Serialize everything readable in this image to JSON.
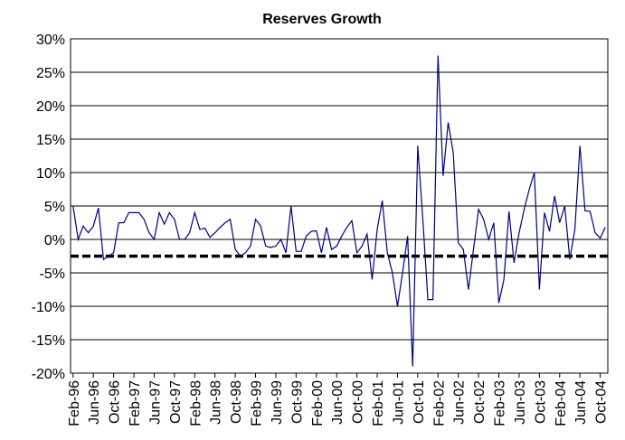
{
  "chart_data": {
    "type": "line",
    "title": "Reserves Growth",
    "categories": [
      "Feb-96",
      null,
      null,
      null,
      "Jun-96",
      null,
      null,
      null,
      "Oct-96",
      null,
      null,
      null,
      "Feb-97",
      null,
      null,
      null,
      "Jun-97",
      null,
      null,
      null,
      "Oct-97",
      null,
      null,
      null,
      "Feb-98",
      null,
      null,
      null,
      "Jun-98",
      null,
      null,
      null,
      "Oct-98",
      null,
      null,
      null,
      "Feb-99",
      null,
      null,
      null,
      "Jun-99",
      null,
      null,
      null,
      "Oct-99",
      null,
      null,
      null,
      "Feb-00",
      null,
      null,
      null,
      "Jun-00",
      null,
      null,
      null,
      "Oct-00",
      null,
      null,
      null,
      "Feb-01",
      null,
      null,
      null,
      "Jun-01",
      null,
      null,
      null,
      "Oct-01",
      null,
      null,
      null,
      "Feb-02",
      null,
      null,
      null,
      "Jun-02",
      null,
      null,
      null,
      "Oct-02",
      null,
      null,
      null,
      "Feb-03",
      null,
      null,
      null,
      "Jun-03",
      null,
      null,
      null,
      "Oct-03",
      null,
      null,
      null,
      "Feb-04",
      null,
      null,
      null,
      "Jun-04",
      null,
      null,
      null,
      "Oct-04",
      null
    ],
    "series": [
      {
        "color": "#000080",
        "values": [
          5,
          0,
          2,
          1,
          2,
          4.7,
          -3,
          -2.5,
          -2,
          2.5,
          2.5,
          4,
          4,
          4,
          3,
          1,
          0,
          4,
          2.3,
          4,
          3,
          0,
          0,
          1,
          4,
          1.5,
          1.7,
          0.3,
          1,
          1.8,
          2.5,
          3,
          -1.5,
          -2.5,
          -2,
          -1,
          3,
          2,
          -1,
          -1.2,
          -1,
          0,
          -2,
          5,
          -1.8,
          -1.8,
          0.5,
          1.2,
          1.3,
          -2,
          1.8,
          -1.5,
          -1,
          0.5,
          1.8,
          2.8,
          -2,
          -1,
          0.8,
          -6,
          1.5,
          5.8,
          -2,
          -5,
          -10,
          -5,
          0.5,
          -19,
          14,
          3,
          -9,
          -9,
          27.5,
          9.5,
          17.5,
          13,
          -0.5,
          -1.5,
          -7.5,
          -1.5,
          4.5,
          3,
          0,
          2.5,
          -9.5,
          -6,
          4.2,
          -3.5,
          1,
          4.5,
          7.5,
          10,
          -7.5,
          4,
          1.2,
          6.5,
          2.5,
          5,
          -3,
          1.5,
          14,
          4.3,
          4.2,
          1,
          0.2,
          1.8
        ]
      }
    ],
    "hline": {
      "value": -2.5,
      "color": "#000000"
    },
    "ylim": [
      -20,
      30
    ],
    "yticks": [
      {
        "value": -20,
        "label": "-20%"
      },
      {
        "value": -15,
        "label": "-15%"
      },
      {
        "value": -10,
        "label": "-10%"
      },
      {
        "value": -5,
        "label": "-5%"
      },
      {
        "value": 0,
        "label": "0%"
      },
      {
        "value": 5,
        "label": "5%"
      },
      {
        "value": 10,
        "label": "10%"
      },
      {
        "value": 15,
        "label": "15%"
      },
      {
        "value": 20,
        "label": "20%"
      },
      {
        "value": 25,
        "label": "25%"
      },
      {
        "value": 30,
        "label": "30%"
      }
    ],
    "grid": true
  }
}
